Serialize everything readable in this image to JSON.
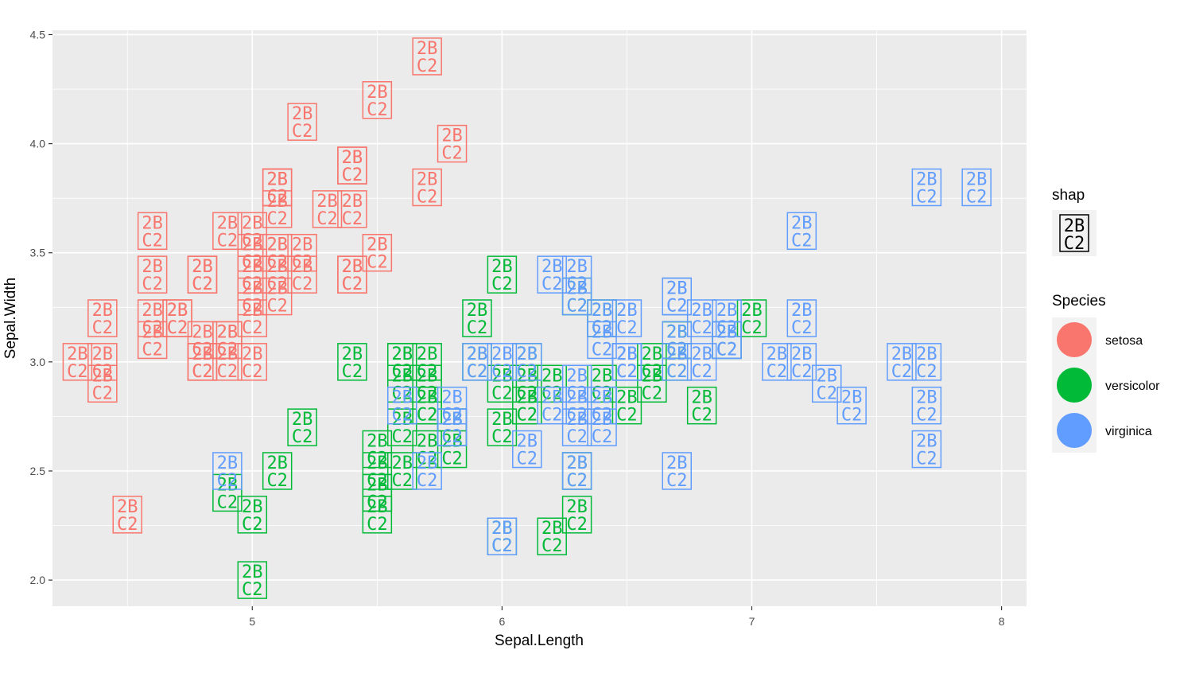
{
  "chart_data": {
    "type": "scatter",
    "title": "",
    "xlabel": "Sepal.Length",
    "ylabel": "Sepal.Width",
    "xlim": [
      4.2,
      8.1
    ],
    "ylim": [
      1.88,
      4.52
    ],
    "x_ticks": [
      5,
      6,
      7,
      8
    ],
    "x_tick_labels": [
      "5",
      "6",
      "7",
      "8"
    ],
    "y_ticks": [
      2.0,
      2.5,
      3.0,
      3.5,
      4.0,
      4.5
    ],
    "y_tick_labels": [
      "2.0",
      "2.5",
      "3.0",
      "3.5",
      "4.0",
      "4.5"
    ],
    "grid": true,
    "point_glyph": {
      "line1": "2B",
      "line2": "C2"
    },
    "legends": {
      "shape": {
        "title": "shap",
        "glyph_line1": "2B",
        "glyph_line2": "C2"
      },
      "color": {
        "title": "Species",
        "entries": [
          "setosa",
          "versicolor",
          "virginica"
        ]
      }
    },
    "colors": {
      "setosa": "#F8766D",
      "versicolor": "#00BA38",
      "virginica": "#619CFF"
    },
    "series": [
      {
        "name": "setosa",
        "points": [
          [
            5.1,
            3.5
          ],
          [
            4.9,
            3.0
          ],
          [
            4.7,
            3.2
          ],
          [
            4.6,
            3.1
          ],
          [
            5.0,
            3.6
          ],
          [
            5.4,
            3.9
          ],
          [
            4.6,
            3.4
          ],
          [
            5.0,
            3.4
          ],
          [
            4.4,
            2.9
          ],
          [
            4.9,
            3.1
          ],
          [
            5.4,
            3.7
          ],
          [
            4.8,
            3.4
          ],
          [
            4.8,
            3.0
          ],
          [
            4.3,
            3.0
          ],
          [
            5.8,
            4.0
          ],
          [
            5.7,
            4.4
          ],
          [
            5.4,
            3.9
          ],
          [
            5.1,
            3.5
          ],
          [
            5.7,
            3.8
          ],
          [
            5.1,
            3.8
          ],
          [
            5.4,
            3.4
          ],
          [
            5.1,
            3.7
          ],
          [
            4.6,
            3.6
          ],
          [
            5.1,
            3.3
          ],
          [
            4.8,
            3.4
          ],
          [
            5.0,
            3.0
          ],
          [
            5.0,
            3.4
          ],
          [
            5.2,
            3.5
          ],
          [
            5.2,
            3.4
          ],
          [
            4.7,
            3.2
          ],
          [
            4.8,
            3.1
          ],
          [
            5.4,
            3.4
          ],
          [
            5.2,
            4.1
          ],
          [
            5.5,
            4.2
          ],
          [
            4.9,
            3.1
          ],
          [
            5.0,
            3.2
          ],
          [
            5.5,
            3.5
          ],
          [
            4.9,
            3.6
          ],
          [
            4.4,
            3.0
          ],
          [
            5.1,
            3.4
          ],
          [
            5.0,
            3.5
          ],
          [
            4.5,
            2.3
          ],
          [
            4.4,
            3.2
          ],
          [
            5.0,
            3.5
          ],
          [
            5.1,
            3.8
          ],
          [
            4.8,
            3.0
          ],
          [
            5.1,
            3.8
          ],
          [
            4.6,
            3.2
          ],
          [
            5.3,
            3.7
          ],
          [
            5.0,
            3.3
          ]
        ]
      },
      {
        "name": "versicolor",
        "points": [
          [
            7.0,
            3.2
          ],
          [
            6.4,
            3.2
          ],
          [
            6.9,
            3.1
          ],
          [
            5.5,
            2.3
          ],
          [
            6.5,
            2.8
          ],
          [
            5.7,
            2.8
          ],
          [
            6.3,
            3.3
          ],
          [
            4.9,
            2.4
          ],
          [
            6.6,
            2.9
          ],
          [
            5.2,
            2.7
          ],
          [
            5.0,
            2.0
          ],
          [
            5.9,
            3.0
          ],
          [
            6.0,
            2.2
          ],
          [
            6.1,
            2.9
          ],
          [
            5.6,
            2.9
          ],
          [
            6.7,
            3.1
          ],
          [
            5.6,
            3.0
          ],
          [
            5.8,
            2.7
          ],
          [
            6.2,
            2.2
          ],
          [
            5.6,
            2.5
          ],
          [
            5.9,
            3.2
          ],
          [
            6.1,
            2.8
          ],
          [
            6.3,
            2.5
          ],
          [
            6.1,
            2.8
          ],
          [
            6.4,
            2.9
          ],
          [
            6.6,
            3.0
          ],
          [
            6.8,
            2.8
          ],
          [
            6.7,
            3.0
          ],
          [
            6.0,
            2.9
          ],
          [
            5.7,
            2.6
          ],
          [
            5.5,
            2.4
          ],
          [
            5.5,
            2.4
          ],
          [
            5.8,
            2.7
          ],
          [
            6.0,
            2.7
          ],
          [
            5.4,
            3.0
          ],
          [
            6.0,
            3.4
          ],
          [
            6.7,
            3.1
          ],
          [
            6.3,
            2.3
          ],
          [
            5.6,
            3.0
          ],
          [
            5.5,
            2.5
          ],
          [
            5.5,
            2.6
          ],
          [
            6.1,
            3.0
          ],
          [
            5.8,
            2.6
          ],
          [
            5.0,
            2.3
          ],
          [
            5.6,
            2.7
          ],
          [
            5.7,
            3.0
          ],
          [
            5.7,
            2.9
          ],
          [
            6.2,
            2.9
          ],
          [
            5.1,
            2.5
          ],
          [
            5.7,
            2.8
          ]
        ]
      },
      {
        "name": "virginica",
        "points": [
          [
            6.3,
            3.3
          ],
          [
            5.8,
            2.7
          ],
          [
            7.1,
            3.0
          ],
          [
            6.3,
            2.9
          ],
          [
            6.5,
            3.0
          ],
          [
            7.6,
            3.0
          ],
          [
            4.9,
            2.5
          ],
          [
            7.3,
            2.9
          ],
          [
            6.7,
            2.5
          ],
          [
            7.2,
            3.6
          ],
          [
            6.5,
            3.2
          ],
          [
            6.4,
            2.7
          ],
          [
            6.8,
            3.0
          ],
          [
            5.7,
            2.5
          ],
          [
            5.8,
            2.8
          ],
          [
            6.4,
            3.2
          ],
          [
            6.5,
            3.0
          ],
          [
            7.7,
            3.8
          ],
          [
            7.7,
            2.6
          ],
          [
            6.0,
            2.2
          ],
          [
            6.9,
            3.2
          ],
          [
            5.6,
            2.8
          ],
          [
            7.7,
            2.8
          ],
          [
            6.3,
            2.7
          ],
          [
            6.7,
            3.3
          ],
          [
            7.2,
            3.2
          ],
          [
            6.2,
            2.8
          ],
          [
            6.1,
            3.0
          ],
          [
            6.4,
            2.8
          ],
          [
            7.2,
            3.0
          ],
          [
            7.4,
            2.8
          ],
          [
            7.9,
            3.8
          ],
          [
            6.4,
            2.8
          ],
          [
            6.3,
            2.8
          ],
          [
            6.1,
            2.6
          ],
          [
            7.7,
            3.0
          ],
          [
            6.3,
            3.4
          ],
          [
            6.4,
            3.1
          ],
          [
            6.0,
            3.0
          ],
          [
            6.9,
            3.1
          ],
          [
            6.7,
            3.1
          ],
          [
            6.9,
            3.1
          ],
          [
            5.8,
            2.7
          ],
          [
            6.8,
            3.2
          ],
          [
            6.7,
            3.3
          ],
          [
            6.7,
            3.0
          ],
          [
            6.3,
            2.5
          ],
          [
            6.5,
            3.0
          ],
          [
            6.2,
            3.4
          ],
          [
            5.9,
            3.0
          ]
        ]
      }
    ]
  }
}
